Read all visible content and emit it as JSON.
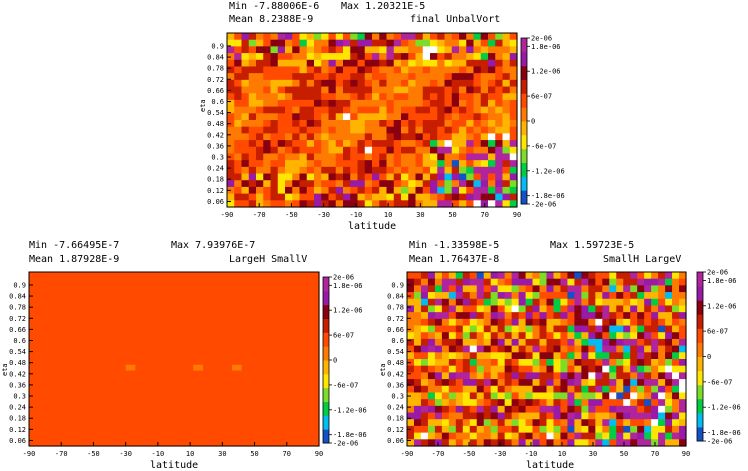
{
  "colorbar": {
    "ticks": [
      "2e-06",
      "1.8e-06",
      "1.2e-06",
      "6e-07",
      "0",
      "-6e-07",
      "-1.2e-06",
      "-1.8e-06",
      "-2e-06"
    ],
    "tick_values": [
      2e-06,
      1.8e-06,
      1.2e-06,
      6e-07,
      0,
      -6e-07,
      -1.2e-06,
      -1.8e-06,
      -2e-06
    ],
    "stops": [
      "#1450c8",
      "#00bcf0",
      "#00cc44",
      "#7ddc28",
      "#ffe600",
      "#ffb400",
      "#ff7a00",
      "#ff4a00",
      "#c81e00",
      "#8a0010",
      "#9a1aa8",
      "#b0249e"
    ]
  },
  "chart_data": [
    {
      "type": "heatmap",
      "title": "final UnbalVort",
      "stats": {
        "min": "Min -7.88006E-6",
        "max": "Max 1.20321E-5",
        "mean": "Mean 8.2388E-9"
      },
      "xlabel": "latitude",
      "ylabel": "eta",
      "xlim": [
        -90,
        90
      ],
      "ylim": [
        0.03,
        0.97
      ],
      "xticks": [
        "-90",
        "-70",
        "-50",
        "-30",
        "-10",
        "10",
        "30",
        "50",
        "70",
        "90"
      ],
      "yticks": [
        "0.9",
        "0.84",
        "0.78",
        "0.72",
        "0.66",
        "0.6",
        "0.54",
        "0.48",
        "0.42",
        "0.36",
        "0.3",
        "0.24",
        "0.18",
        "0.12",
        "0.06"
      ],
      "pattern": "noisy",
      "seed": 7
    },
    {
      "type": "heatmap",
      "title": "LargeH SmallV",
      "stats": {
        "min": "Min -7.66495E-7",
        "max": "Max 7.93976E-7",
        "mean": "Mean 1.87928E-9"
      },
      "xlabel": "latitude",
      "ylabel": "eta",
      "xlim": [
        -90,
        90
      ],
      "ylim": [
        0.03,
        0.97
      ],
      "xticks": [
        "-90",
        "-70",
        "-50",
        "-30",
        "-10",
        "10",
        "30",
        "50",
        "70",
        "90"
      ],
      "yticks": [
        "0.9",
        "0.84",
        "0.78",
        "0.72",
        "0.66",
        "0.6",
        "0.54",
        "0.48",
        "0.42",
        "0.36",
        "0.3",
        "0.24",
        "0.18",
        "0.12",
        "0.06"
      ],
      "pattern": "smooth",
      "seed": 3
    },
    {
      "type": "heatmap",
      "title": "SmallH LargeV",
      "stats": {
        "min": "Min -1.33598E-5",
        "max": "Max 1.59723E-5",
        "mean": "Mean 1.76437E-8"
      },
      "xlabel": "latitude",
      "ylabel": "eta",
      "xlim": [
        -90,
        90
      ],
      "ylim": [
        0.03,
        0.97
      ],
      "xticks": [
        "-90",
        "-70",
        "-50",
        "-30",
        "-10",
        "10",
        "30",
        "50",
        "70",
        "90"
      ],
      "yticks": [
        "0.9",
        "0.84",
        "0.78",
        "0.72",
        "0.66",
        "0.6",
        "0.54",
        "0.48",
        "0.42",
        "0.36",
        "0.3",
        "0.24",
        "0.18",
        "0.12",
        "0.06"
      ],
      "pattern": "striped",
      "seed": 11
    }
  ]
}
